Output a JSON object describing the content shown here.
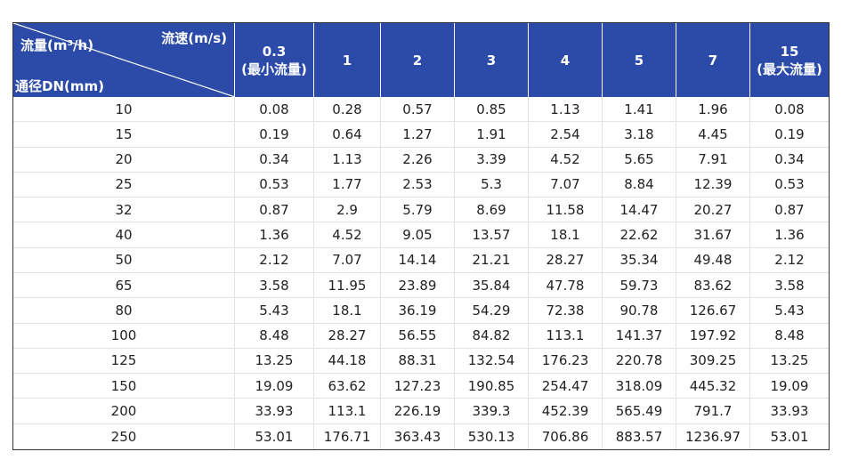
{
  "table": {
    "corner": {
      "top_left": "流量(m³/h)",
      "top_right": "流速(m/s)",
      "bottom_left": "通径DN(mm)"
    },
    "headers": [
      {
        "speed": "0.3",
        "note": "(最小流量)"
      },
      {
        "speed": "1"
      },
      {
        "speed": "2"
      },
      {
        "speed": "3"
      },
      {
        "speed": "4"
      },
      {
        "speed": "5"
      },
      {
        "speed": "7"
      },
      {
        "speed": "15",
        "note": "(最大流量)"
      }
    ],
    "rows": [
      [
        "10",
        "0.08",
        "0.28",
        "0.57",
        "0.85",
        "1.13",
        "1.41",
        "1.96",
        "0.08"
      ],
      [
        "15",
        "0.19",
        "0.64",
        "1.27",
        "1.91",
        "2.54",
        "3.18",
        "4.45",
        "0.19"
      ],
      [
        "20",
        "0.34",
        "1.13",
        "2.26",
        "3.39",
        "4.52",
        "5.65",
        "7.91",
        "0.34"
      ],
      [
        "25",
        "0.53",
        "1.77",
        "2.53",
        "5.3",
        "7.07",
        "8.84",
        "12.39",
        "0.53"
      ],
      [
        "32",
        "0.87",
        "2.9",
        "5.79",
        "8.69",
        "11.58",
        "14.47",
        "20.27",
        "0.87"
      ],
      [
        "40",
        "1.36",
        "4.52",
        "9.05",
        "13.57",
        "18.1",
        "22.62",
        "31.67",
        "1.36"
      ],
      [
        "50",
        "2.12",
        "7.07",
        "14.14",
        "21.21",
        "28.27",
        "35.34",
        "49.48",
        "2.12"
      ],
      [
        "65",
        "3.58",
        "11.95",
        "23.89",
        "35.84",
        "47.78",
        "59.73",
        "83.62",
        "3.58"
      ],
      [
        "80",
        "5.43",
        "18.1",
        "36.19",
        "54.29",
        "72.38",
        "90.78",
        "126.67",
        "5.43"
      ],
      [
        "100",
        "8.48",
        "28.27",
        "56.55",
        "84.82",
        "113.1",
        "141.37",
        "197.92",
        "8.48"
      ],
      [
        "125",
        "13.25",
        "44.18",
        "88.31",
        "132.54",
        "176.23",
        "220.78",
        "309.25",
        "13.25"
      ],
      [
        "150",
        "19.09",
        "63.62",
        "127.23",
        "190.85",
        "254.47",
        "318.09",
        "445.32",
        "19.09"
      ],
      [
        "200",
        "33.93",
        "113.1",
        "226.19",
        "339.3",
        "452.39",
        "565.49",
        "791.7",
        "33.93"
      ],
      [
        "250",
        "53.01",
        "176.71",
        "363.43",
        "530.13",
        "706.86",
        "883.57",
        "1236.97",
        "53.01"
      ]
    ]
  }
}
